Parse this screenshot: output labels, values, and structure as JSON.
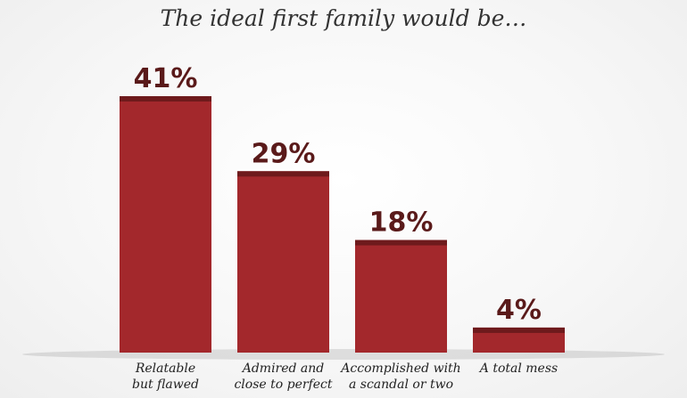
{
  "chart_data": {
    "type": "bar",
    "title": "The ideal first family would be…",
    "categories": [
      [
        "Relatable",
        "but flawed"
      ],
      [
        "Admired and",
        "close to perfect"
      ],
      [
        "Accomplished with",
        "a scandal or two"
      ],
      [
        "A total mess"
      ]
    ],
    "values": [
      41,
      29,
      18,
      4
    ],
    "value_labels": [
      "41%",
      "29%",
      "18%",
      "4%"
    ],
    "ylim": [
      0,
      41
    ],
    "grid": false,
    "colors": {
      "bar": "#a3282c",
      "bar_top": "#6e1a1c",
      "value_text": "#5a1a1a"
    }
  }
}
